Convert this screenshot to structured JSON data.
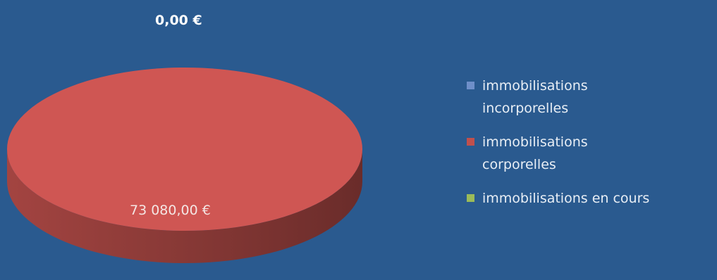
{
  "chart_data": {
    "type": "pie",
    "labels": [
      "immobilisations incorporelles",
      "immobilisations corporelles",
      "immobilisations en cours"
    ],
    "values": [
      0,
      73080,
      0
    ],
    "data_labels": [
      "0,00 €",
      "73 080,00 €",
      ""
    ],
    "colors": [
      "#6f8fc9",
      "#c0504d",
      "#9bbb59"
    ],
    "legend_position": "right",
    "style": "3d"
  },
  "legend": {
    "items": [
      {
        "label": "immobilisations incorporelles",
        "color": "#6f8fc9"
      },
      {
        "label": "immobilisations corporelles",
        "color": "#c0504d"
      },
      {
        "label": "immobilisations en cours",
        "color": "#9bbb59"
      }
    ]
  },
  "labels": {
    "zero": "0,00 €",
    "main": "73 080,00 €"
  }
}
